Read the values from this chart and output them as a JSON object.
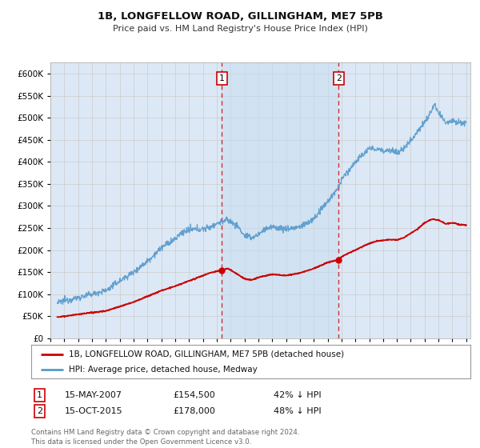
{
  "title": "1B, LONGFELLOW ROAD, GILLINGHAM, ME7 5PB",
  "subtitle": "Price paid vs. HM Land Registry's House Price Index (HPI)",
  "bg_color": "#ffffff",
  "plot_bg_color": "#dce8f5",
  "grid_color": "#bbbbbb",
  "hpi_color": "#5599cc",
  "price_color": "#cc0000",
  "sale1_date": 2007.37,
  "sale1_price": 154500,
  "sale2_date": 2015.79,
  "sale2_price": 178000,
  "footer": "Contains HM Land Registry data © Crown copyright and database right 2024.\nThis data is licensed under the Open Government Licence v3.0.",
  "legend_entry1": "1B, LONGFELLOW ROAD, GILLINGHAM, ME7 5PB (detached house)",
  "legend_entry2": "HPI: Average price, detached house, Medway",
  "hpi_anchors_x": [
    1995.5,
    1996.0,
    1997.0,
    1998.0,
    1999.0,
    2000.0,
    2001.0,
    2002.0,
    2003.0,
    2004.0,
    2004.5,
    2005.0,
    2006.0,
    2006.5,
    2007.0,
    2007.37,
    2007.8,
    2008.5,
    2009.0,
    2009.5,
    2010.0,
    2010.5,
    2011.0,
    2012.0,
    2013.0,
    2014.0,
    2014.5,
    2015.0,
    2015.79,
    2016.0,
    2016.5,
    2017.0,
    2017.5,
    2018.0,
    2018.5,
    2019.0,
    2019.5,
    2020.0,
    2020.5,
    2021.0,
    2021.5,
    2022.0,
    2022.4,
    2022.7,
    2023.0,
    2023.5,
    2024.0,
    2024.5,
    2025.0
  ],
  "hpi_anchors_y": [
    80000,
    85000,
    92000,
    100000,
    108000,
    130000,
    150000,
    175000,
    205000,
    225000,
    240000,
    245000,
    248000,
    252000,
    260000,
    265000,
    268000,
    255000,
    232000,
    228000,
    235000,
    248000,
    252000,
    248000,
    252000,
    270000,
    290000,
    310000,
    342000,
    360000,
    380000,
    400000,
    415000,
    430000,
    430000,
    425000,
    428000,
    420000,
    430000,
    450000,
    470000,
    490000,
    510000,
    530000,
    510000,
    490000,
    495000,
    490000,
    488000
  ],
  "price_anchors_x": [
    1995.5,
    1996.0,
    1997.0,
    1998.0,
    1999.0,
    2000.0,
    2001.0,
    2002.0,
    2003.0,
    2004.0,
    2005.0,
    2006.0,
    2006.5,
    2007.0,
    2007.37,
    2007.8,
    2008.0,
    2008.5,
    2009.0,
    2009.5,
    2010.0,
    2011.0,
    2012.0,
    2013.0,
    2014.0,
    2015.0,
    2015.79,
    2016.0,
    2016.5,
    2017.0,
    2017.5,
    2018.0,
    2018.5,
    2019.0,
    2019.5,
    2020.0,
    2020.5,
    2021.0,
    2021.5,
    2022.0,
    2022.5,
    2023.0,
    2023.5,
    2024.0,
    2024.5,
    2025.0
  ],
  "price_anchors_y": [
    48000,
    50000,
    54000,
    58000,
    62000,
    72000,
    82000,
    95000,
    108000,
    118000,
    130000,
    142000,
    148000,
    152000,
    154500,
    158000,
    155000,
    145000,
    135000,
    132000,
    138000,
    145000,
    142000,
    148000,
    158000,
    172000,
    178000,
    185000,
    193000,
    200000,
    208000,
    215000,
    220000,
    222000,
    224000,
    223000,
    228000,
    238000,
    248000,
    262000,
    270000,
    268000,
    260000,
    262000,
    258000,
    256000
  ]
}
